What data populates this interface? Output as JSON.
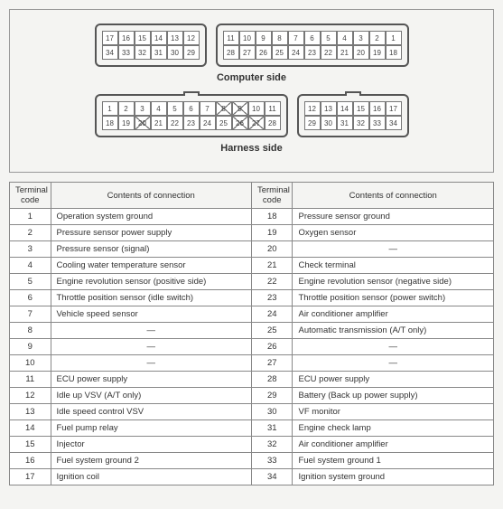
{
  "captions": {
    "computer_side": "Computer side",
    "harness_side": "Harness side"
  },
  "connectors": {
    "computer_left": {
      "cols": 6,
      "rows": [
        [
          "17",
          "16",
          "15",
          "14",
          "13",
          "12"
        ],
        [
          "34",
          "33",
          "32",
          "31",
          "30",
          "29"
        ]
      ]
    },
    "computer_right": {
      "cols": 11,
      "rows": [
        [
          "11",
          "10",
          "9",
          "8",
          "7",
          "6",
          "5",
          "4",
          "3",
          "2",
          "1"
        ],
        [
          "28",
          "27",
          "26",
          "25",
          "24",
          "23",
          "22",
          "21",
          "20",
          "19",
          "18"
        ]
      ]
    },
    "harness_left": {
      "cols": 11,
      "rows": [
        [
          "1",
          "2",
          "3",
          "4",
          "5",
          "6",
          "7",
          "8",
          "9",
          "10",
          "11"
        ],
        [
          "18",
          "19",
          "20",
          "21",
          "22",
          "23",
          "24",
          "25",
          "26",
          "27",
          "28"
        ]
      ],
      "crossed": [
        "8",
        "9",
        "20",
        "26",
        "27"
      ]
    },
    "harness_right": {
      "cols": 6,
      "rows": [
        [
          "12",
          "13",
          "14",
          "15",
          "16",
          "17"
        ],
        [
          "29",
          "30",
          "31",
          "32",
          "33",
          "34"
        ]
      ]
    }
  },
  "table": {
    "headers": {
      "code": "Terminal code",
      "contents": "Contents of connection"
    },
    "rows": [
      {
        "c1": "1",
        "d1": "Operation system ground",
        "c2": "18",
        "d2": "Pressure sensor ground"
      },
      {
        "c1": "2",
        "d1": "Pressure sensor power supply",
        "c2": "19",
        "d2": "Oxygen sensor"
      },
      {
        "c1": "3",
        "d1": "Pressure sensor (signal)",
        "c2": "20",
        "d2": "—",
        "dash2": true
      },
      {
        "c1": "4",
        "d1": "Cooling water temperature sensor",
        "c2": "21",
        "d2": "Check terminal"
      },
      {
        "c1": "5",
        "d1": "Engine revolution sensor (positive side)",
        "c2": "22",
        "d2": "Engine revolution sensor (negative side)"
      },
      {
        "c1": "6",
        "d1": "Throttle position sensor (idle switch)",
        "c2": "23",
        "d2": "Throttle position sensor (power switch)"
      },
      {
        "c1": "7",
        "d1": "Vehicle speed sensor",
        "c2": "24",
        "d2": "Air conditioner amplifier"
      },
      {
        "c1": "8",
        "d1": "—",
        "dash1": true,
        "c2": "25",
        "d2": "Automatic transmission (A/T only)"
      },
      {
        "c1": "9",
        "d1": "—",
        "dash1": true,
        "c2": "26",
        "d2": "—",
        "dash2": true
      },
      {
        "c1": "10",
        "d1": "—",
        "dash1": true,
        "c2": "27",
        "d2": "—",
        "dash2": true
      },
      {
        "c1": "11",
        "d1": "ECU power supply",
        "c2": "28",
        "d2": "ECU power supply"
      },
      {
        "c1": "12",
        "d1": "Idle up VSV (A/T only)",
        "c2": "29",
        "d2": "Battery (Back up power supply)"
      },
      {
        "c1": "13",
        "d1": "Idle speed control VSV",
        "c2": "30",
        "d2": "VF monitor"
      },
      {
        "c1": "14",
        "d1": "Fuel pump relay",
        "c2": "31",
        "d2": "Engine check lamp"
      },
      {
        "c1": "15",
        "d1": "Injector",
        "c2": "32",
        "d2": "Air conditioner amplifier"
      },
      {
        "c1": "16",
        "d1": "Fuel system ground 2",
        "c2": "33",
        "d2": "Fuel system ground 1"
      },
      {
        "c1": "17",
        "d1": "Ignition coil",
        "c2": "34",
        "d2": "Ignition system ground"
      }
    ]
  }
}
